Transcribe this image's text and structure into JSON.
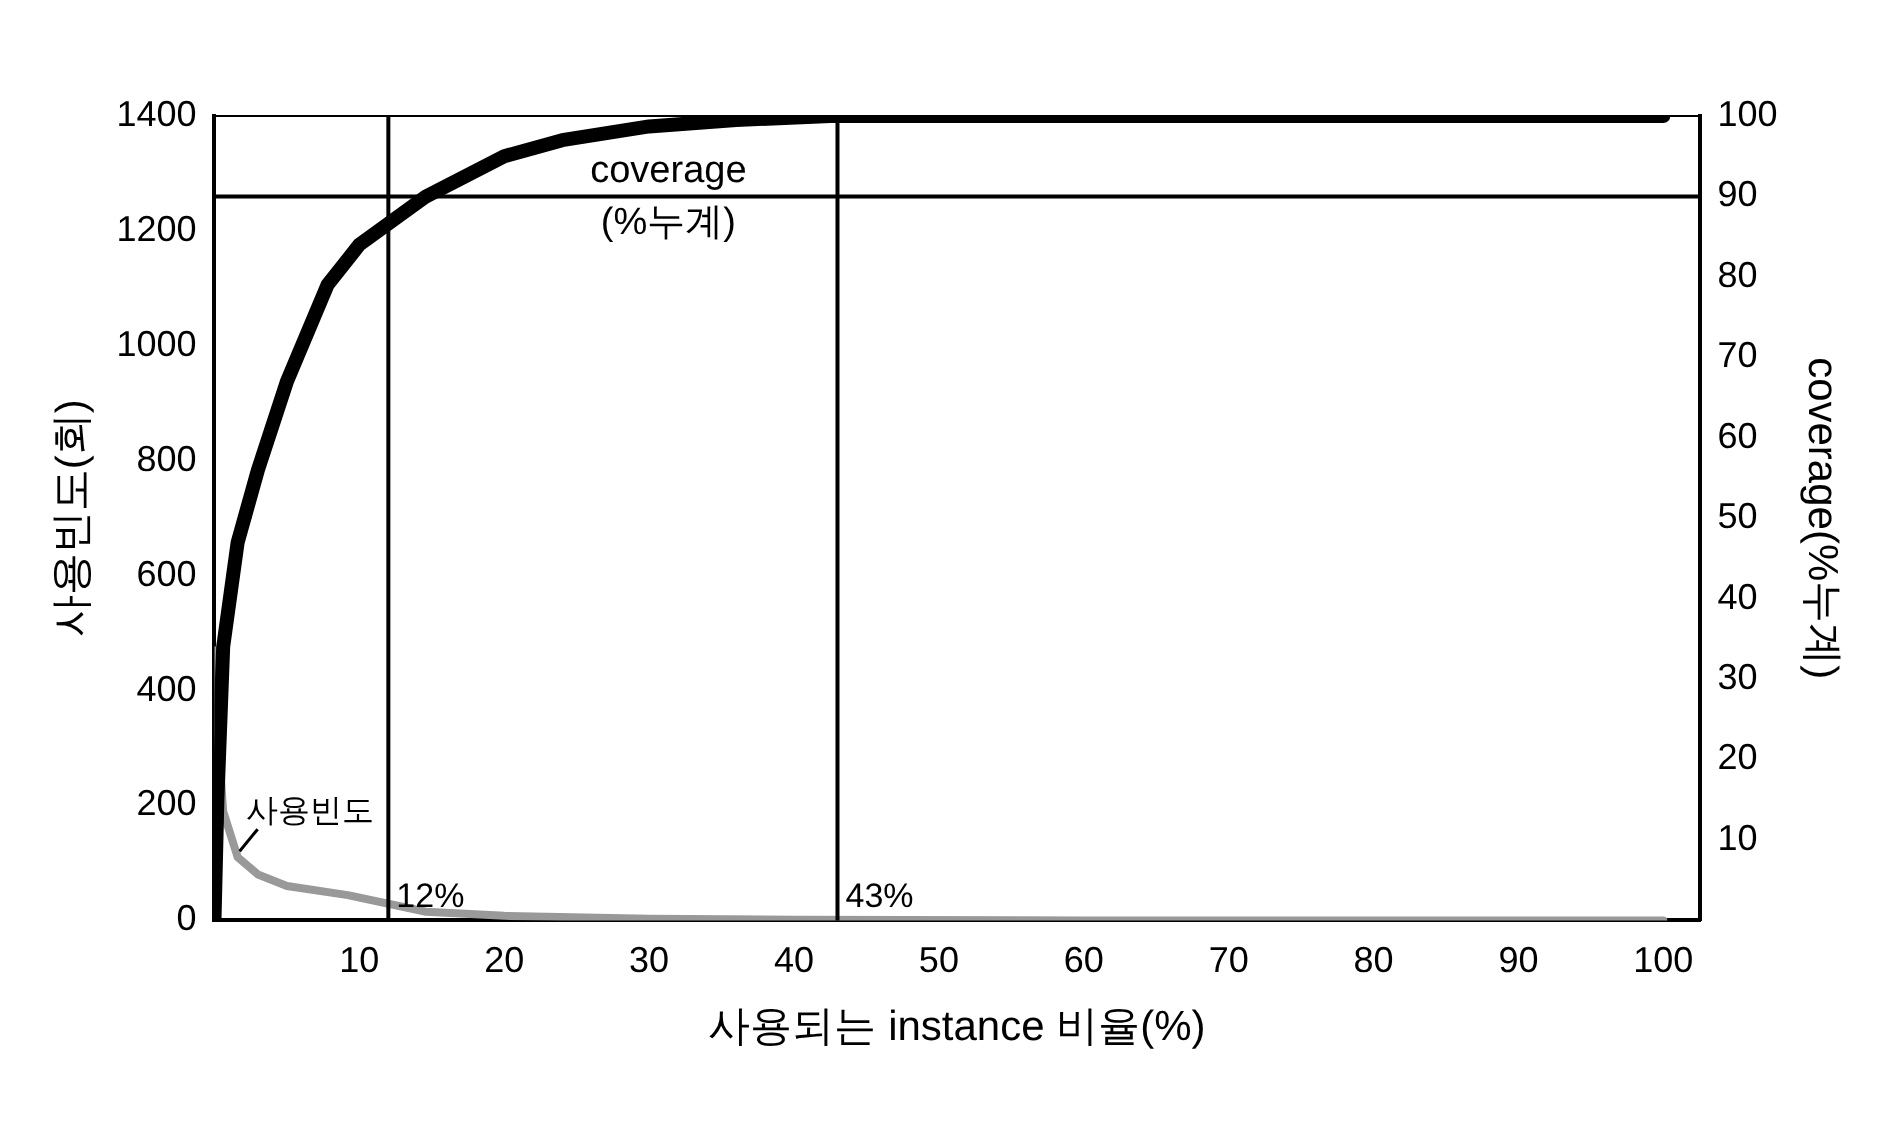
{
  "chart_data": {
    "type": "line",
    "xlabel": "사용되는 instance 비율(%)",
    "ylabel": "사용빈도(회)",
    "y2label": "coverage(%누계)",
    "series": [
      {
        "name": "coverage (%누계)",
        "color": "#000000",
        "axis": "y2",
        "x": [
          0,
          0.2,
          0.6,
          1.6,
          3,
          5,
          7.8,
          10,
          14.6,
          20,
          24,
          30,
          36,
          42.5,
          60,
          80,
          100
        ],
        "values": [
          0,
          15,
          34,
          47,
          56,
          67,
          79,
          84,
          90,
          95,
          97,
          98.7,
          99.5,
          100,
          100,
          100,
          100
        ]
      },
      {
        "name": "사용빈도",
        "color": "#999999",
        "x": [
          0,
          0.3,
          0.6,
          1.6,
          3,
          5,
          9.2,
          14.6,
          20,
          30,
          40,
          60,
          80,
          100
        ],
        "values": [
          470,
          300,
          190,
          110,
          80,
          60,
          44,
          15,
          8,
          3,
          1,
          0,
          0,
          0
        ]
      }
    ],
    "xlim": [
      0,
      102.5
    ],
    "xticks": [
      10,
      20,
      30,
      40,
      50,
      60,
      70,
      80,
      90,
      100
    ],
    "ylim": [
      0,
      1400
    ],
    "yticks": [
      0,
      200,
      400,
      600,
      800,
      1000,
      1200,
      1400
    ],
    "y2lim": [
      0,
      100
    ],
    "y2ticks": [
      10,
      20,
      30,
      40,
      50,
      60,
      70,
      80,
      90,
      100
    ],
    "ref_lines": [
      {
        "axis": "x",
        "value": 12,
        "label": "12%"
      },
      {
        "axis": "x",
        "value": 43,
        "label": "43%"
      },
      {
        "axis": "y2",
        "value": 90
      }
    ],
    "grid": false,
    "legend": false,
    "marker": "none",
    "line_style": "solid"
  }
}
